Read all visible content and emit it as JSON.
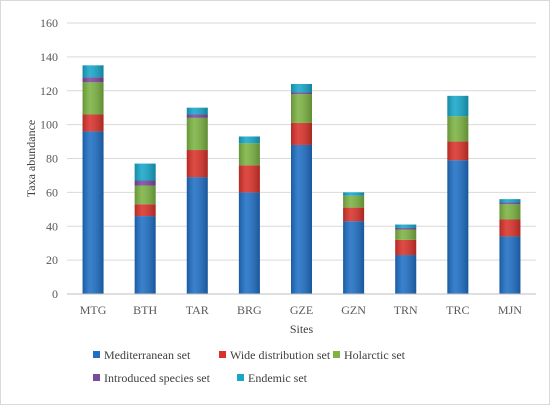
{
  "chart_data": {
    "type": "bar",
    "stacked": true,
    "title": "",
    "xlabel": "Sites",
    "ylabel": "Taxa abundance",
    "ylim": [
      0,
      160
    ],
    "yticks": [
      0,
      20,
      40,
      60,
      80,
      100,
      120,
      140,
      160
    ],
    "grid": true,
    "legend_position": "bottom",
    "categories": [
      "MTG",
      "BTH",
      "TAR",
      "BRG",
      "GZE",
      "GZN",
      "TRN",
      "TRC",
      "MJN"
    ],
    "series": [
      {
        "name": "Mediterranean set",
        "color": "#1f6fc5",
        "values": [
          96,
          46,
          69,
          60,
          88,
          43,
          23,
          79,
          34
        ]
      },
      {
        "name": "Wide distribution set",
        "color": "#d9322a",
        "values": [
          10,
          7,
          16,
          16,
          13,
          8,
          9,
          11,
          10
        ]
      },
      {
        "name": "Holarctic set",
        "color": "#7cb342",
        "values": [
          19,
          11,
          19,
          13,
          17,
          7,
          6,
          15,
          9
        ]
      },
      {
        "name": "Introduced species set",
        "color": "#7b4a9e",
        "values": [
          3,
          3,
          2,
          0,
          1,
          0,
          1,
          0,
          1
        ]
      },
      {
        "name": "Endemic set",
        "color": "#17a7c9",
        "values": [
          7,
          10,
          4,
          4,
          5,
          2,
          2,
          12,
          2
        ]
      }
    ]
  }
}
